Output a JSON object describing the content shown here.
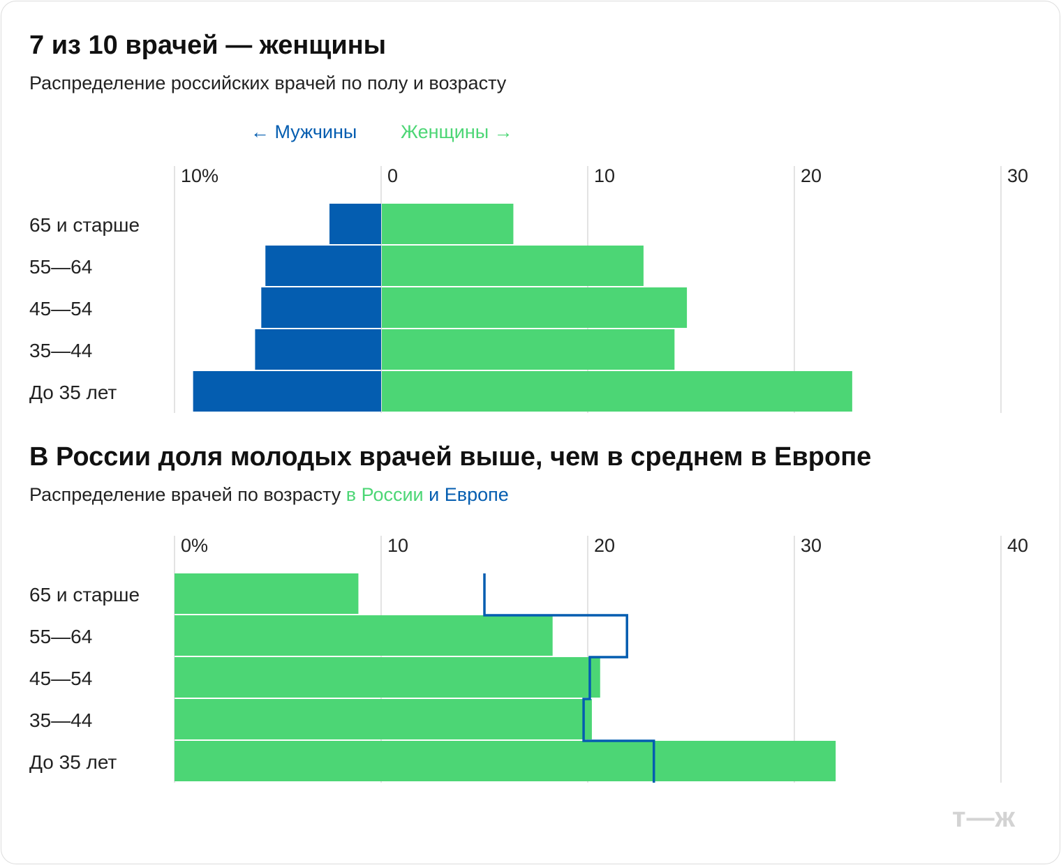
{
  "header": {
    "title": "7 из 10 врачей — женщины",
    "subtitle": "Распределение российских врачей по полу и возрасту"
  },
  "legend": {
    "men": "← Мужчины",
    "women": "Женщины →"
  },
  "section2": {
    "title": "В России доля молодых врачей выше, чем в среднем в Европе",
    "subtitle_prefix": "Распределение врачей по возрасту",
    "subtitle_russia": "в России",
    "subtitle_europe": "и Европе"
  },
  "logo": "т—ж",
  "colors": {
    "men": "#045db0",
    "women": "#4cd675",
    "russia": "#4cd675",
    "europe": "#045db0",
    "grid": "#e3e3e3"
  },
  "chart_data": [
    {
      "type": "bar",
      "subtype": "population-pyramid",
      "title": "7 из 10 врачей — женщины",
      "subtitle": "Распределение российских врачей по полу и возрасту",
      "categories": [
        "65 и старше",
        "55—64",
        "45—54",
        "35—44",
        "До 35 лет"
      ],
      "series": [
        {
          "name": "Мужчины",
          "side": "left",
          "values": [
            2.5,
            5.6,
            5.8,
            6.1,
            9.1
          ]
        },
        {
          "name": "Женщины",
          "side": "right",
          "values": [
            6.4,
            12.7,
            14.8,
            14.2,
            22.8
          ]
        }
      ],
      "xlim": [
        -10,
        30
      ],
      "ticks": [
        {
          "value": -10,
          "label": "10%"
        },
        {
          "value": 0,
          "label": "0"
        },
        {
          "value": 10,
          "label": "10"
        },
        {
          "value": 20,
          "label": "20"
        },
        {
          "value": 30,
          "label": "30"
        }
      ],
      "grid": true
    },
    {
      "type": "bar",
      "subtype": "bar-with-step-line",
      "title": "В России доля молодых врачей выше, чем в среднем в Европе",
      "subtitle": "Распределение врачей по возрасту в России и Европе",
      "categories": [
        "65 и старше",
        "55—64",
        "45—54",
        "35—44",
        "До 35 лет"
      ],
      "series": [
        {
          "name": "в России",
          "kind": "bar",
          "values": [
            8.9,
            18.3,
            20.6,
            20.2,
            32.0
          ]
        },
        {
          "name": "и Европе",
          "kind": "step-line",
          "values": [
            15.0,
            21.9,
            20.1,
            19.8,
            23.2
          ]
        }
      ],
      "xlim": [
        0,
        40
      ],
      "ticks": [
        {
          "value": 0,
          "label": "0%"
        },
        {
          "value": 10,
          "label": "10"
        },
        {
          "value": 20,
          "label": "20"
        },
        {
          "value": 30,
          "label": "30"
        },
        {
          "value": 40,
          "label": "40"
        }
      ],
      "grid": true
    }
  ]
}
